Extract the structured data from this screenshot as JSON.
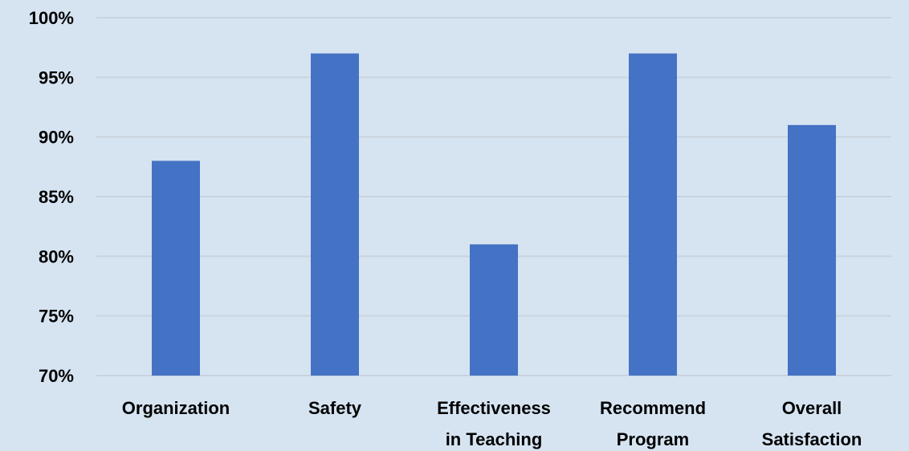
{
  "chart_data": {
    "type": "bar",
    "categories": [
      [
        "Organization"
      ],
      [
        "Safety"
      ],
      [
        "Effectiveness",
        "in Teaching"
      ],
      [
        "Recommend",
        "Program"
      ],
      [
        "Overall",
        "Satisfaction"
      ]
    ],
    "values": [
      88,
      97,
      81,
      97,
      91
    ],
    "ylim": [
      70,
      100
    ],
    "yticks": [
      70,
      75,
      80,
      85,
      90,
      95,
      100
    ],
    "ytick_labels": [
      "70%",
      "75%",
      "80%",
      "85%",
      "90%",
      "95%",
      "100%"
    ],
    "grid": true,
    "bar_color": "#4472c4",
    "grid_color": "#c9d3dd",
    "background": "#d6e4f2"
  }
}
